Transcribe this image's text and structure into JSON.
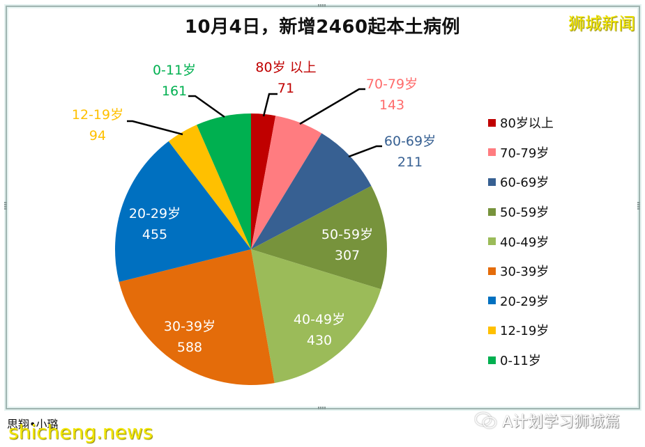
{
  "header": {
    "title": "10月4日，新增2460起本土病例",
    "brand": "狮城新闻"
  },
  "chart_data": {
    "type": "pie",
    "title": "10月4日，新增2460起本土病例",
    "total": 2460,
    "legend_position": "right",
    "categories": [
      "80岁以上",
      "70-79岁",
      "60-69岁",
      "50-59岁",
      "40-49岁",
      "30-39岁",
      "20-29岁",
      "12-19岁",
      "0-11岁"
    ],
    "values": [
      71,
      143,
      211,
      307,
      430,
      588,
      455,
      94,
      161
    ],
    "colors": [
      "#c00000",
      "#ff7c80",
      "#376092",
      "#77933c",
      "#9bbb59",
      "#e46c0a",
      "#0070c0",
      "#ffc000",
      "#00b050"
    ],
    "data_labels": [
      {
        "name": "80岁 以上",
        "value": "71",
        "color": "#c00000"
      },
      {
        "name": "70-79岁",
        "value": "143",
        "color": "#ff6b6b"
      },
      {
        "name": "60-69岁",
        "value": "211",
        "color": "#376092"
      },
      {
        "name": "50-59岁",
        "value": "307",
        "color": "#ffffff"
      },
      {
        "name": "40-49岁",
        "value": "430",
        "color": "#ffffff"
      },
      {
        "name": "30-39岁",
        "value": "588",
        "color": "#ffffff"
      },
      {
        "name": "20-29岁",
        "value": "455",
        "color": "#ffffff"
      },
      {
        "name": "12-19岁",
        "value": "94",
        "color": "#ffc000"
      },
      {
        "name": "0-11岁",
        "value": "161",
        "color": "#00b050"
      }
    ]
  },
  "legend": {
    "items": [
      {
        "label": "80岁以上",
        "color": "#c00000"
      },
      {
        "label": "70-79岁",
        "color": "#ff7c80"
      },
      {
        "label": "60-69岁",
        "color": "#376092"
      },
      {
        "label": "50-59岁",
        "color": "#77933c"
      },
      {
        "label": "40-49岁",
        "color": "#9bbb59"
      },
      {
        "label": "30-39岁",
        "color": "#e46c0a"
      },
      {
        "label": "20-29岁",
        "color": "#0070c0"
      },
      {
        "label": "12-19岁",
        "color": "#ffc000"
      },
      {
        "label": "0-11岁",
        "color": "#00b050"
      }
    ]
  },
  "footer": {
    "author": "思翔•小璐",
    "site": "shicheng.news",
    "wechat": "A计划学习狮城篇",
    "wechat_icon": "wechat-icon"
  }
}
